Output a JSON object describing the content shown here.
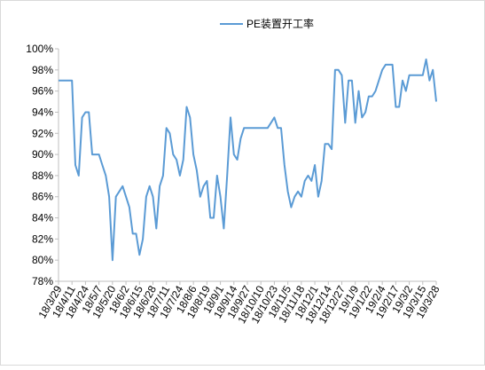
{
  "chart_data": {
    "type": "line",
    "series": [
      {
        "name": "PE装置开工率",
        "color": "#5b9bd5",
        "values": [
          97,
          97,
          97,
          97,
          97,
          89,
          88,
          93.5,
          94,
          94,
          90,
          90,
          90,
          89,
          88,
          86,
          80,
          86,
          86.5,
          87,
          86,
          85,
          82.5,
          82.5,
          80.5,
          82,
          86,
          87,
          86,
          83,
          87,
          88,
          92.5,
          92,
          90,
          89.5,
          88,
          89.5,
          94.5,
          93.5,
          90,
          88.5,
          86,
          87,
          87.5,
          84,
          84,
          88,
          86,
          83,
          88,
          93.5,
          90,
          89.5,
          91.5,
          92.5,
          92.5,
          92.5,
          92.5,
          92.5,
          92.5,
          92.5,
          92.5,
          93,
          93.5,
          92.5,
          92.5,
          89,
          86.5,
          85,
          86,
          86.5,
          86,
          87.5,
          88,
          87.5,
          89,
          86,
          87.5,
          91,
          91,
          90.5,
          98,
          98,
          97.5,
          93,
          97,
          97,
          93,
          96,
          93.5,
          94,
          95.5,
          95.5,
          96,
          97,
          98,
          98.5,
          98.5,
          98.5,
          94.5,
          94.5,
          97,
          96,
          97.5,
          97.5,
          97.5,
          97.5,
          97.5,
          99,
          97,
          98,
          95
        ]
      }
    ],
    "categories": [
      "18/3/29",
      null,
      null,
      null,
      "18/4/11",
      null,
      null,
      null,
      "18/4/24",
      null,
      null,
      null,
      "18/5/7",
      null,
      null,
      null,
      "18/5/20",
      null,
      null,
      null,
      "18/6/2",
      null,
      null,
      null,
      "18/6/15",
      null,
      null,
      null,
      "18/6/28",
      null,
      null,
      null,
      "18/7/11",
      null,
      null,
      null,
      "18/7/24",
      null,
      null,
      null,
      "18/8/6",
      null,
      null,
      null,
      "18/8/19",
      null,
      null,
      null,
      "18/9/1",
      null,
      null,
      null,
      "18/9/14",
      null,
      null,
      null,
      "18/9/27",
      null,
      null,
      null,
      "18/10/10",
      null,
      null,
      null,
      "18/10/23",
      null,
      null,
      null,
      "18/11/5",
      null,
      null,
      null,
      "18/11/18",
      null,
      null,
      null,
      "18/12/1",
      null,
      null,
      null,
      "18/12/14",
      null,
      null,
      null,
      "18/12/27",
      null,
      null,
      null,
      "19/1/9",
      null,
      null,
      null,
      "19/1/22",
      null,
      null,
      null,
      "19/2/4",
      null,
      null,
      null,
      "19/2/17",
      null,
      null,
      null,
      "19/3/2",
      null,
      null,
      null,
      "19/3/15",
      null,
      null,
      null,
      "19/3/28"
    ],
    "ylim": [
      78,
      100
    ],
    "yticks": [
      {
        "value": 78,
        "label": "78%"
      },
      {
        "value": 80,
        "label": "80%"
      },
      {
        "value": 82,
        "label": "82%"
      },
      {
        "value": 84,
        "label": "84%"
      },
      {
        "value": 86,
        "label": "86%"
      },
      {
        "value": 88,
        "label": "88%"
      },
      {
        "value": 90,
        "label": "90%"
      },
      {
        "value": 92,
        "label": "92%"
      },
      {
        "value": 94,
        "label": "94%"
      },
      {
        "value": 96,
        "label": "96%"
      },
      {
        "value": 98,
        "label": "98%"
      },
      {
        "value": 100,
        "label": "100%"
      }
    ],
    "grid": false,
    "legend": "top"
  }
}
